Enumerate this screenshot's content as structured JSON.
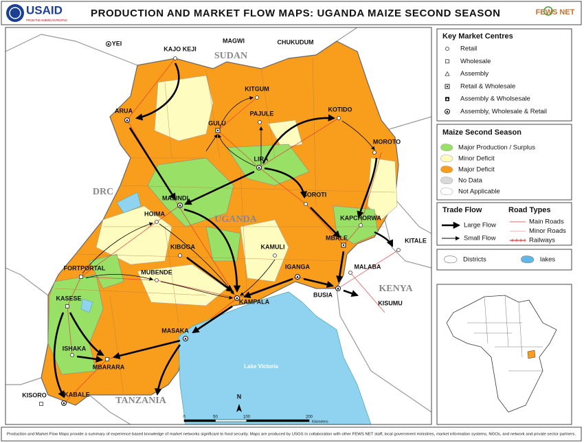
{
  "header": {
    "logo": "USAID",
    "logo_tagline": "FROM THE AMERICAN PEOPLE",
    "title": "PRODUCTION AND MARKET FLOW MAPS: UGANDA MAIZE SECOND SEASON",
    "partner_logo": "FEWS NET"
  },
  "map": {
    "countries": [
      "SUDAN",
      "DRC",
      "UGANDA",
      "KENYA",
      "TANZANIA"
    ],
    "lake": "Lake Victoria",
    "towns": [
      "YEI",
      "KAJO KEJI",
      "MAGWI",
      "CHUKUDUM",
      "KITGUM",
      "ARUA",
      "PAJULE",
      "KOTIDO",
      "GULU",
      "LIRA",
      "MOROTO",
      "MASINDI",
      "SOROTI",
      "HOIMA",
      "KAPCHORWA",
      "KIBOGA",
      "KAMULI",
      "MBALE",
      "KITALE",
      "FORTPORTAL",
      "MUBENDE",
      "IGANGA",
      "MALABA",
      "KASESE",
      "KAMPALA",
      "BUSIA",
      "KISUMU",
      "MASAKA",
      "ISHAKA",
      "MBARARA",
      "KISORO",
      "KABALE"
    ],
    "north": "N",
    "scale": {
      "ticks": [
        0,
        50,
        100,
        200
      ],
      "unit": "Kilometers"
    }
  },
  "legend": {
    "market_centres": {
      "title": "Key Market Centres",
      "items": [
        "Retail",
        "Wholesale",
        "Assembly",
        "Retail & Wholesale",
        "Assembly & Wholsesale",
        "Assembly, Wholesale & Retail"
      ]
    },
    "season": {
      "title": "Maize Second Season",
      "items": [
        "Major Production / Surplus",
        "Minor Deficit",
        "Major Deficit",
        "No Data",
        "Not Applicable"
      ]
    },
    "trade_flow": {
      "title": "Trade Flow",
      "items": [
        "Large Flow",
        "Small Flow"
      ]
    },
    "road_types": {
      "title": "Road Types",
      "items": [
        "Main Roads",
        "Minor Roads",
        "Railways"
      ]
    },
    "features": [
      "Districts",
      "lakes"
    ]
  },
  "footer": "Production and Market Flow Maps provide a summary of experience based knowledge of market networks significant to food security. Maps are produced by USGS in collaboration with other FEWS NET staff, local government ministries, market information systems, NGOs, and network and private sector partners."
}
